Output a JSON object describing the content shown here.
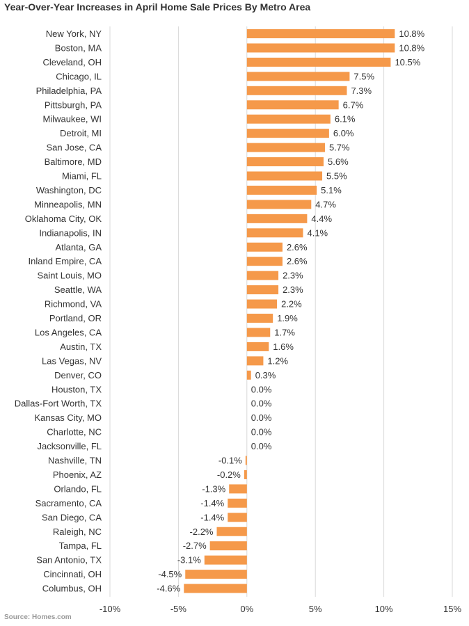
{
  "title": "Year-Over-Year Increases in April Home Sale Prices By Metro Area",
  "source": "Source: Homes.com",
  "colors": {
    "bar": "#F5994A",
    "grid": "#d9d9d9",
    "text": "#333333"
  },
  "chart_data": {
    "type": "bar",
    "orientation": "horizontal",
    "title": "Year-Over-Year Increases in April Home Sale Prices By Metro Area",
    "xlabel": "",
    "ylabel": "",
    "xlim": [
      -10,
      15
    ],
    "xticks": [
      -10,
      -5,
      0,
      5,
      10,
      15
    ],
    "xtick_labels": [
      "-10%",
      "-5%",
      "0%",
      "5%",
      "10%",
      "15%"
    ],
    "grid": true,
    "legend": "none",
    "categories": [
      "New York, NY",
      "Boston, MA",
      "Cleveland, OH",
      "Chicago, IL",
      "Philadelphia, PA",
      "Pittsburgh, PA",
      "Milwaukee, WI",
      "Detroit, MI",
      "San Jose, CA",
      "Baltimore, MD",
      "Miami, FL",
      "Washington, DC",
      "Minneapolis, MN",
      "Oklahoma City, OK",
      "Indianapolis, IN",
      "Atlanta, GA",
      "Inland Empire, CA",
      "Saint Louis, MO",
      "Seattle, WA",
      "Richmond, VA",
      "Portland, OR",
      "Los Angeles, CA",
      "Austin, TX",
      "Las Vegas, NV",
      "Denver, CO",
      "Houston, TX",
      "Dallas-Fort Worth, TX",
      "Kansas City, MO",
      "Charlotte, NC",
      "Jacksonville, FL",
      "Nashville, TN",
      "Phoenix, AZ",
      "Orlando, FL",
      "Sacramento, CA",
      "San Diego, CA",
      "Raleigh, NC",
      "Tampa, FL",
      "San Antonio, TX",
      "Cincinnati, OH",
      "Columbus, OH"
    ],
    "values": [
      10.8,
      10.8,
      10.5,
      7.5,
      7.3,
      6.7,
      6.1,
      6.0,
      5.7,
      5.6,
      5.5,
      5.1,
      4.7,
      4.4,
      4.1,
      2.6,
      2.6,
      2.3,
      2.3,
      2.2,
      1.9,
      1.7,
      1.6,
      1.2,
      0.3,
      0.0,
      0.0,
      0.0,
      0.0,
      0.0,
      -0.1,
      -0.2,
      -1.3,
      -1.4,
      -1.4,
      -2.2,
      -2.7,
      -3.1,
      -4.5,
      -4.6
    ],
    "value_labels": [
      "10.8%",
      "10.8%",
      "10.5%",
      "7.5%",
      "7.3%",
      "6.7%",
      "6.1%",
      "6.0%",
      "5.7%",
      "5.6%",
      "5.5%",
      "5.1%",
      "4.7%",
      "4.4%",
      "4.1%",
      "2.6%",
      "2.6%",
      "2.3%",
      "2.3%",
      "2.2%",
      "1.9%",
      "1.7%",
      "1.6%",
      "1.2%",
      "0.3%",
      "0.0%",
      "0.0%",
      "0.0%",
      "0.0%",
      "0.0%",
      "-0.1%",
      "-0.2%",
      "-1.3%",
      "-1.4%",
      "-1.4%",
      "-2.2%",
      "-2.7%",
      "-3.1%",
      "-4.5%",
      "-4.6%"
    ]
  }
}
